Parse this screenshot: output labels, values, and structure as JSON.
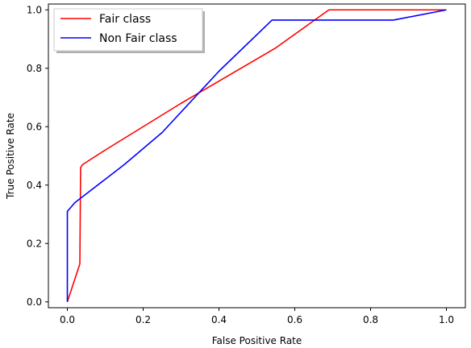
{
  "chart_data": {
    "type": "line",
    "title": "",
    "xlabel": "False Positive Rate",
    "ylabel": "True Positive Rate",
    "xlim": [
      -0.05,
      1.05
    ],
    "ylim": [
      -0.02,
      1.02
    ],
    "xticks": [
      0.0,
      0.2,
      0.4,
      0.6,
      0.8,
      1.0
    ],
    "yticks": [
      0.0,
      0.2,
      0.4,
      0.6,
      0.8,
      1.0
    ],
    "xtick_labels": [
      "0.0",
      "0.2",
      "0.4",
      "0.6",
      "0.8",
      "1.0"
    ],
    "ytick_labels": [
      "0.0",
      "0.2",
      "0.4",
      "0.6",
      "0.8",
      "1.0"
    ],
    "grid": false,
    "legend_position": "upper-left",
    "series": [
      {
        "name": "Fair class",
        "color": "#ff0000",
        "x": [
          0.0,
          0.033,
          0.035,
          0.04,
          0.1,
          0.3,
          0.55,
          0.69,
          0.73,
          1.0
        ],
        "y": [
          0.0,
          0.13,
          0.46,
          0.47,
          0.52,
          0.68,
          0.87,
          1.0,
          1.0,
          1.0
        ]
      },
      {
        "name": "Non Fair class",
        "color": "#0000ff",
        "x": [
          0.0,
          0.0,
          0.02,
          0.06,
          0.15,
          0.25,
          0.4,
          0.54,
          0.86,
          1.0
        ],
        "y": [
          0.0,
          0.31,
          0.34,
          0.38,
          0.47,
          0.58,
          0.79,
          0.965,
          0.965,
          1.0
        ]
      }
    ]
  }
}
